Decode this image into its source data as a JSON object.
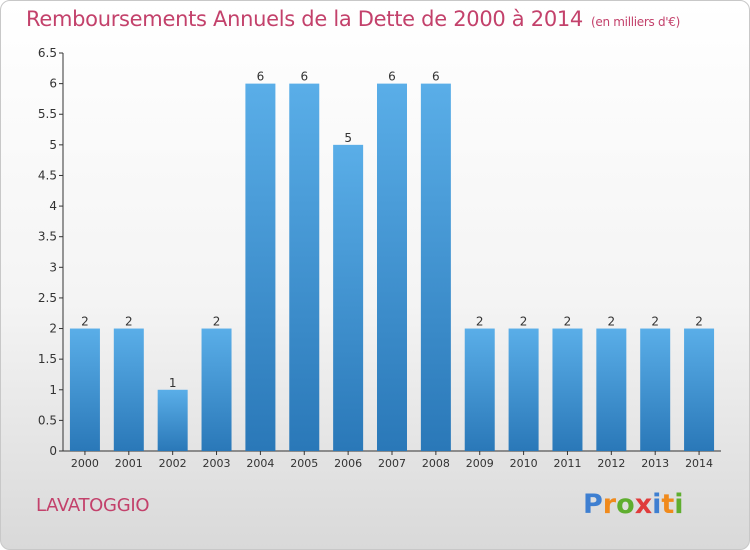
{
  "title": "Remboursements Annuels de la Dette de 2000 à 2014",
  "unit_note": "(en milliers d'€)",
  "location": "LAVATOGGIO",
  "logo": {
    "text": "Proxiti",
    "colors": [
      "#3e7fd1",
      "#f08a1c",
      "#5fae2f",
      "#e03b3b",
      "#3e7fd1",
      "#f08a1c",
      "#5fae2f"
    ]
  },
  "colors": {
    "title": "#c3416b",
    "bar_light": "#5aaee8",
    "bar_dark": "#2a78b8",
    "axis": "#333333"
  },
  "chart_data": {
    "type": "bar",
    "title": "Remboursements Annuels de la Dette de 2000 à 2014",
    "categories": [
      "2000",
      "2001",
      "2002",
      "2003",
      "2004",
      "2005",
      "2006",
      "2007",
      "2008",
      "2009",
      "2010",
      "2011",
      "2012",
      "2013",
      "2014"
    ],
    "values": [
      2,
      2,
      1,
      2,
      6,
      6,
      5,
      6,
      6,
      2,
      2,
      2,
      2,
      2,
      2
    ],
    "data_labels": [
      "2",
      "2",
      "1",
      "2",
      "6",
      "6",
      "5",
      "6",
      "6",
      "2",
      "2",
      "2",
      "2",
      "2",
      "2"
    ],
    "y_ticks": [
      "0",
      "0.5",
      "1",
      "1.5",
      "2",
      "2.5",
      "3",
      "3.5",
      "4",
      "4.5",
      "5",
      "5.5",
      "6",
      "6.5"
    ],
    "ylim": [
      0,
      6.5
    ],
    "grid": false
  }
}
